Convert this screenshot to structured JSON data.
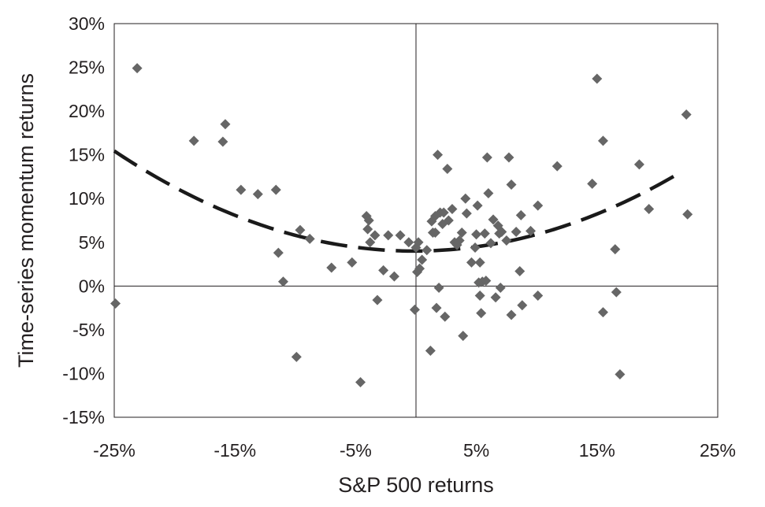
{
  "chart_data": {
    "type": "scatter",
    "title": "",
    "xlabel": "S&P 500 returns",
    "ylabel": "Time-series momentum returns",
    "xlim": [
      -0.25,
      0.25
    ],
    "ylim": [
      -0.15,
      0.3
    ],
    "xticks": [
      -0.25,
      -0.15,
      -0.05,
      0.05,
      0.15,
      0.25
    ],
    "xtick_labels": [
      "-25%",
      "-15%",
      "-5%",
      "5%",
      "15%",
      "25%"
    ],
    "yticks": [
      -0.15,
      -0.1,
      -0.05,
      0.0,
      0.05,
      0.1,
      0.15,
      0.2,
      0.25,
      0.3
    ],
    "ytick_labels": [
      "-15%",
      "-10%",
      "-5%",
      "0%",
      "5%",
      "10%",
      "15%",
      "20%",
      "25%",
      "30%"
    ],
    "grid": false,
    "legend": "none",
    "marker_color": "#666666",
    "curve_color": "#1a1a1a",
    "fit_curve": {
      "style": "dashed",
      "x_range": [
        -0.25,
        0.22
      ],
      "coefficients": [
        0.04,
        0.005,
        1.85
      ]
    },
    "points": [
      [
        -0.249,
        -0.02
      ],
      [
        -0.231,
        0.249
      ],
      [
        -0.184,
        0.166
      ],
      [
        -0.16,
        0.165
      ],
      [
        -0.158,
        0.185
      ],
      [
        -0.145,
        0.11
      ],
      [
        -0.131,
        0.105
      ],
      [
        -0.116,
        0.11
      ],
      [
        -0.114,
        0.038
      ],
      [
        -0.11,
        0.005
      ],
      [
        -0.099,
        -0.081
      ],
      [
        -0.096,
        0.064
      ],
      [
        -0.088,
        0.054
      ],
      [
        -0.07,
        0.021
      ],
      [
        -0.053,
        0.027
      ],
      [
        -0.046,
        -0.11
      ],
      [
        -0.041,
        0.08
      ],
      [
        -0.039,
        0.075
      ],
      [
        -0.04,
        0.065
      ],
      [
        -0.038,
        0.05
      ],
      [
        -0.034,
        0.058
      ],
      [
        -0.032,
        -0.016
      ],
      [
        -0.027,
        0.018
      ],
      [
        -0.023,
        0.058
      ],
      [
        -0.018,
        0.011
      ],
      [
        -0.013,
        0.058
      ],
      [
        -0.006,
        0.05
      ],
      [
        -0.001,
        -0.027
      ],
      [
        0.0,
        0.044
      ],
      [
        0.001,
        0.016
      ],
      [
        0.002,
        0.05
      ],
      [
        0.003,
        0.02
      ],
      [
        0.005,
        0.03
      ],
      [
        0.009,
        0.041
      ],
      [
        0.012,
        -0.074
      ],
      [
        0.013,
        0.074
      ],
      [
        0.014,
        0.061
      ],
      [
        0.016,
        0.061
      ],
      [
        0.016,
        0.08
      ],
      [
        0.017,
        -0.025
      ],
      [
        0.018,
        0.15
      ],
      [
        0.019,
        -0.002
      ],
      [
        0.02,
        0.084
      ],
      [
        0.022,
        0.071
      ],
      [
        0.023,
        0.084
      ],
      [
        0.024,
        -0.035
      ],
      [
        0.026,
        0.134
      ],
      [
        0.027,
        0.075
      ],
      [
        0.03,
        0.088
      ],
      [
        0.032,
        0.05
      ],
      [
        0.034,
        0.047
      ],
      [
        0.036,
        0.052
      ],
      [
        0.038,
        0.061
      ],
      [
        0.039,
        -0.057
      ],
      [
        0.041,
        0.1
      ],
      [
        0.042,
        0.083
      ],
      [
        0.046,
        0.027
      ],
      [
        0.049,
        0.044
      ],
      [
        0.05,
        0.059
      ],
      [
        0.051,
        0.092
      ],
      [
        0.052,
        0.004
      ],
      [
        0.053,
        0.027
      ],
      [
        0.053,
        -0.011
      ],
      [
        0.054,
        -0.031
      ],
      [
        0.055,
        0.005
      ],
      [
        0.057,
        0.06
      ],
      [
        0.058,
        0.006
      ],
      [
        0.059,
        0.147
      ],
      [
        0.06,
        0.106
      ],
      [
        0.062,
        0.049
      ],
      [
        0.064,
        0.076
      ],
      [
        0.066,
        -0.013
      ],
      [
        0.068,
        0.069
      ],
      [
        0.069,
        0.06
      ],
      [
        0.07,
        -0.002
      ],
      [
        0.071,
        0.062
      ],
      [
        0.075,
        0.052
      ],
      [
        0.077,
        0.147
      ],
      [
        0.079,
        0.116
      ],
      [
        0.079,
        -0.033
      ],
      [
        0.083,
        0.062
      ],
      [
        0.086,
        0.017
      ],
      [
        0.087,
        0.081
      ],
      [
        0.088,
        -0.022
      ],
      [
        0.095,
        0.063
      ],
      [
        0.101,
        0.092
      ],
      [
        0.101,
        -0.011
      ],
      [
        0.117,
        0.137
      ],
      [
        0.146,
        0.117
      ],
      [
        0.15,
        0.237
      ],
      [
        0.155,
        0.166
      ],
      [
        0.155,
        -0.03
      ],
      [
        0.165,
        0.042
      ],
      [
        0.166,
        -0.007
      ],
      [
        0.169,
        -0.101
      ],
      [
        0.185,
        0.139
      ],
      [
        0.193,
        0.088
      ],
      [
        0.224,
        0.196
      ],
      [
        0.225,
        0.082
      ]
    ]
  }
}
